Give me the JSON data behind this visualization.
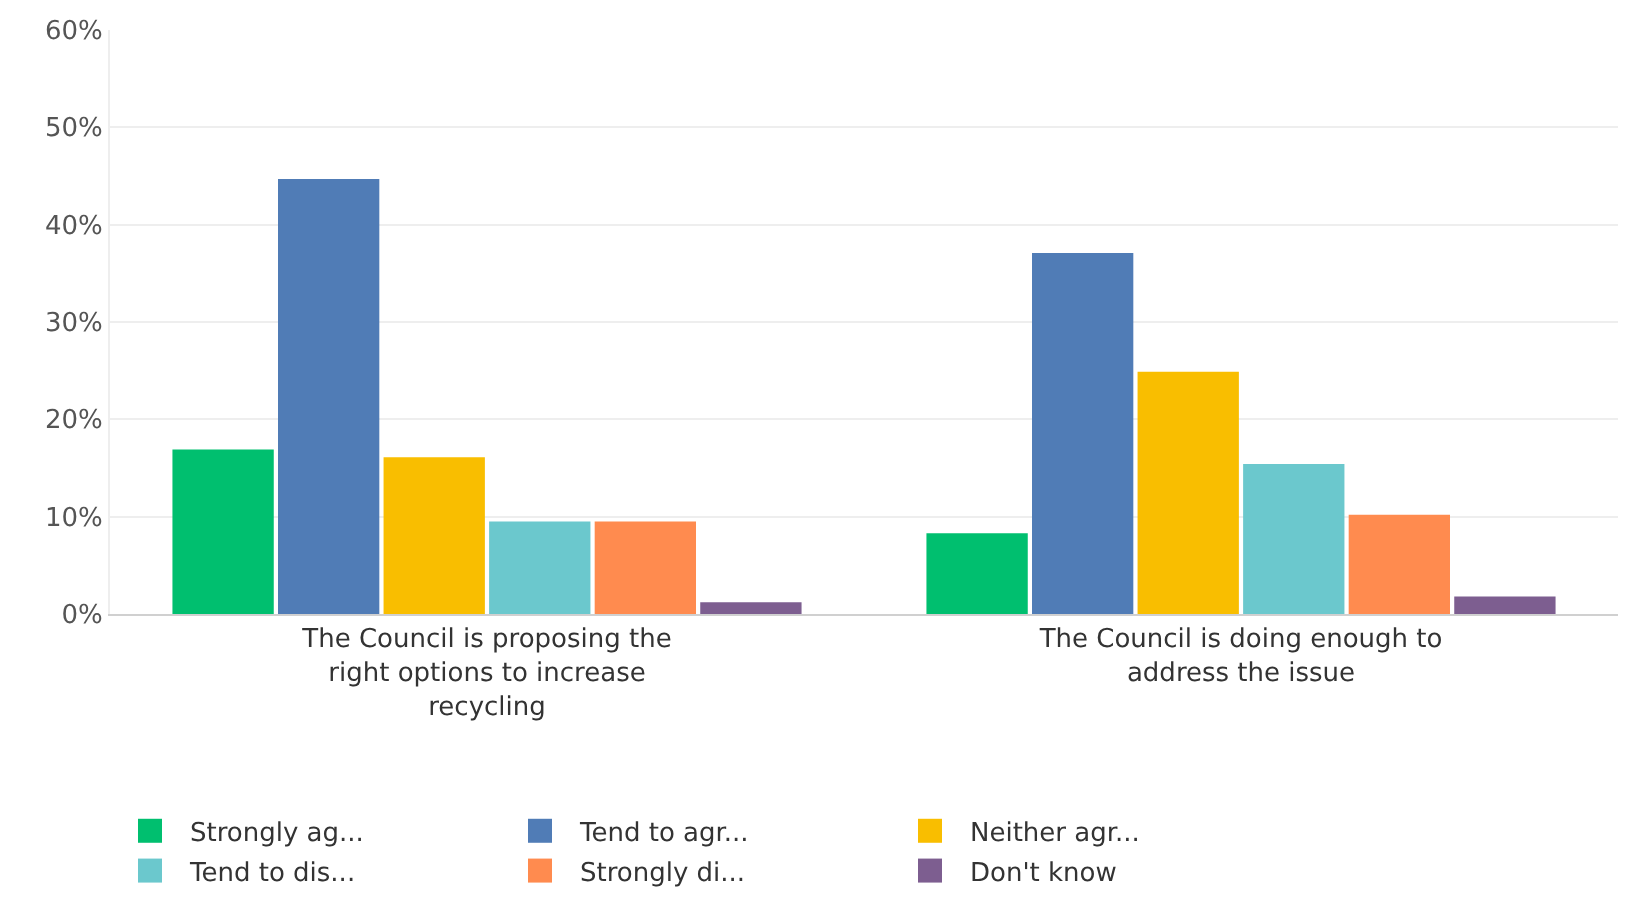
{
  "chart_data": {
    "type": "bar",
    "categories": [
      "The Council is proposing the right options to increase recycling",
      "The Council is doing enough to address the issue"
    ],
    "series": [
      {
        "name": "Strongly ag...",
        "color": "#00bf6f",
        "values": [
          16.9,
          8.3
        ]
      },
      {
        "name": "Tend to agr...",
        "color": "#507cb6",
        "values": [
          44.7,
          37.1
        ]
      },
      {
        "name": "Neither agr...",
        "color": "#f9be00",
        "values": [
          16.1,
          24.9
        ]
      },
      {
        "name": "Tend to dis...",
        "color": "#6bc8cd",
        "values": [
          9.5,
          15.4
        ]
      },
      {
        "name": "Strongly di...",
        "color": "#ff8b4f",
        "values": [
          9.5,
          10.2
        ]
      },
      {
        "name": "Don't know",
        "color": "#7d5e90",
        "values": [
          1.2,
          1.8
        ]
      }
    ],
    "ylim": [
      0,
      60
    ],
    "yticks": [
      {
        "value": 0,
        "label": "0%"
      },
      {
        "value": 10,
        "label": "10%"
      },
      {
        "value": 20,
        "label": "20%"
      },
      {
        "value": 30,
        "label": "30%"
      },
      {
        "value": 40,
        "label": "40%"
      },
      {
        "value": 50,
        "label": "50%"
      },
      {
        "value": 60,
        "label": "60%"
      }
    ],
    "grid": "y",
    "legend": "bottom"
  }
}
